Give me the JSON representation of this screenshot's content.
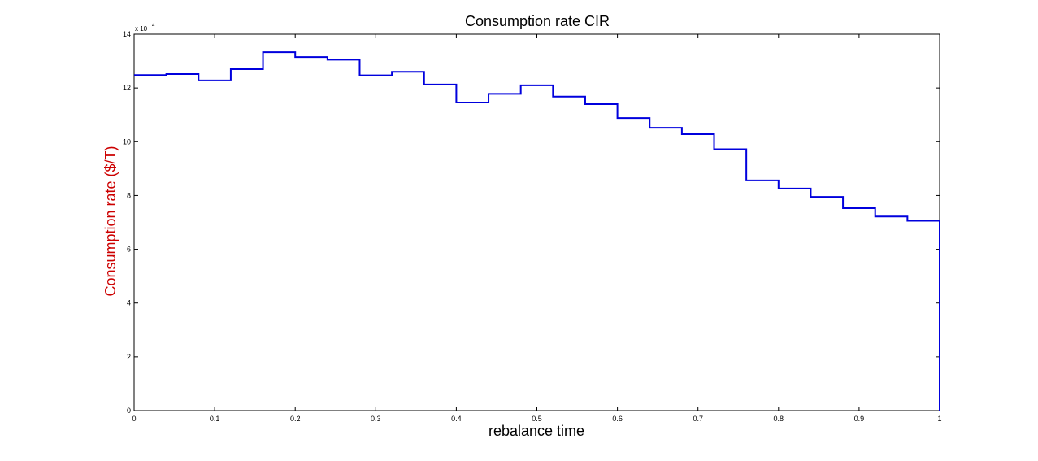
{
  "chart_data": {
    "type": "line",
    "subtype": "step",
    "title": "Consumption rate CIR",
    "xlabel": "rebalance time",
    "ylabel": "Consumption rate ($/T)",
    "ylabel_color": "#cc0000",
    "y_multiplier_label": "x 10",
    "y_multiplier_exponent": "4",
    "xlim": [
      0,
      1
    ],
    "ylim": [
      0,
      14
    ],
    "x_ticks": [
      0,
      0.1,
      0.2,
      0.3,
      0.4,
      0.5,
      0.6,
      0.7,
      0.8,
      0.9,
      1
    ],
    "x_tick_labels": [
      "0",
      "0.1",
      "0.2",
      "0.3",
      "0.4",
      "0.5",
      "0.6",
      "0.7",
      "0.8",
      "0.9",
      "1"
    ],
    "y_ticks": [
      0,
      2,
      4,
      6,
      8,
      10,
      12,
      14
    ],
    "y_tick_labels": [
      "0",
      "2",
      "4",
      "6",
      "8",
      "10",
      "12",
      "14"
    ],
    "grid": false,
    "line_color": "#0000dd",
    "series": [
      {
        "x": [
          0,
          0.04,
          0.08,
          0.12,
          0.16,
          0.2,
          0.24,
          0.28,
          0.32,
          0.36,
          0.4,
          0.44,
          0.48,
          0.52,
          0.56,
          0.6,
          0.64,
          0.68,
          0.72,
          0.76,
          0.8,
          0.84,
          0.88,
          0.92,
          0.96,
          1.0
        ],
        "y": [
          12.48,
          12.52,
          12.28,
          12.7,
          13.33,
          13.15,
          13.05,
          12.47,
          12.6,
          12.13,
          11.46,
          11.78,
          12.1,
          11.68,
          11.4,
          10.88,
          10.52,
          10.28,
          9.72,
          8.56,
          8.26,
          7.95,
          7.53,
          7.22,
          7.06,
          0
        ]
      }
    ]
  }
}
